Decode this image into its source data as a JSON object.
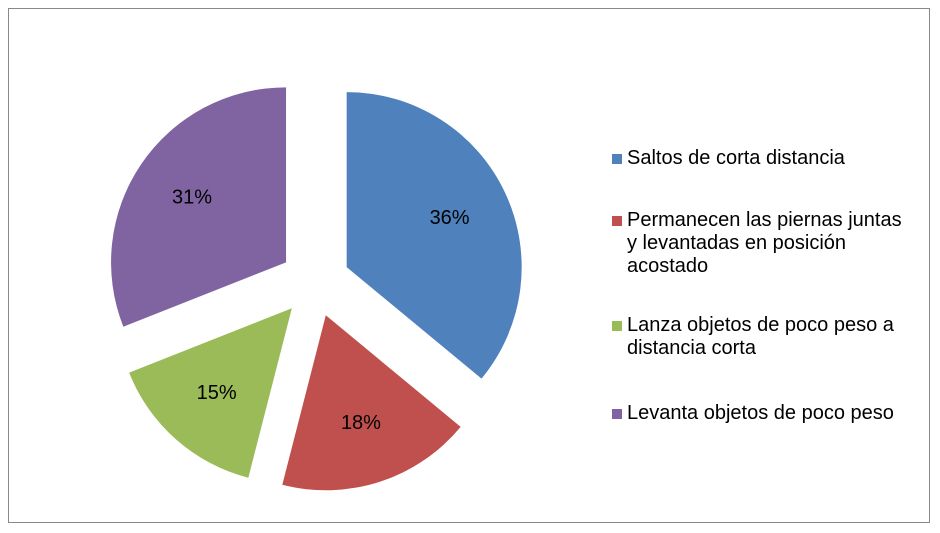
{
  "chart_data": {
    "type": "pie",
    "categories": [
      "Saltos de corta distancia",
      "Permanecen las piernas juntas y levantadas en posición acostado",
      "Lanza objetos de poco peso a distancia corta",
      "Levanta objetos de poco peso"
    ],
    "values": [
      36,
      18,
      15,
      31
    ],
    "value_labels": [
      "36%",
      "18%",
      "15%",
      "31%"
    ],
    "colors": [
      "#4f81bd",
      "#c0504d",
      "#9bbb59",
      "#8064a2"
    ],
    "legend": "right"
  }
}
